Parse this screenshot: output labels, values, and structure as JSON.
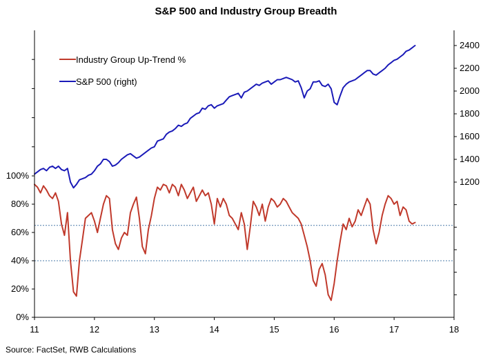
{
  "title": "S&P 500 and Industry Group Breadth",
  "source": "Source: FactSet, RWB Calculations",
  "colors": {
    "breadth": "#c0392b",
    "spx": "#1a1ab8",
    "reference": "#4a7aa8",
    "axis": "#000000"
  },
  "chart_data": {
    "type": "line",
    "title": "S&P 500 and Industry Group Breadth",
    "xlabel": "",
    "ylabel": "",
    "x_ticks": [
      "11",
      "12",
      "13",
      "14",
      "15",
      "16",
      "17",
      "18"
    ],
    "xlim": [
      2011,
      2018
    ],
    "y_left": {
      "ticks": [
        "0%",
        "20%",
        "40%",
        "60%",
        "80%",
        "100%"
      ],
      "ylim": [
        0,
        100
      ]
    },
    "y_right": {
      "ticks": [
        "1200",
        "1400",
        "1600",
        "1800",
        "2000",
        "2200",
        "2400"
      ],
      "ylim": [
        1200,
        2400
      ]
    },
    "reference_lines": [
      {
        "axis": "left",
        "value": 65,
        "style": "dotted"
      },
      {
        "axis": "left",
        "value": 40,
        "style": "dotted"
      }
    ],
    "legend_position": "top-left",
    "grid": false,
    "series": [
      {
        "name": "Industry Group Up-Trend %",
        "axis": "left",
        "color": "#c0392b",
        "x": [
          2011.0,
          2011.05,
          2011.1,
          2011.15,
          2011.2,
          2011.25,
          2011.3,
          2011.35,
          2011.4,
          2011.45,
          2011.5,
          2011.55,
          2011.6,
          2011.65,
          2011.7,
          2011.75,
          2011.8,
          2011.85,
          2011.9,
          2011.95,
          2012.0,
          2012.05,
          2012.1,
          2012.15,
          2012.2,
          2012.25,
          2012.3,
          2012.35,
          2012.4,
          2012.45,
          2012.5,
          2012.55,
          2012.6,
          2012.65,
          2012.7,
          2012.75,
          2012.8,
          2012.85,
          2012.9,
          2012.95,
          2013.0,
          2013.05,
          2013.1,
          2013.15,
          2013.2,
          2013.25,
          2013.3,
          2013.35,
          2013.4,
          2013.45,
          2013.5,
          2013.55,
          2013.6,
          2013.65,
          2013.7,
          2013.75,
          2013.8,
          2013.85,
          2013.9,
          2013.95,
          2014.0,
          2014.05,
          2014.1,
          2014.15,
          2014.2,
          2014.25,
          2014.3,
          2014.35,
          2014.4,
          2014.45,
          2014.5,
          2014.55,
          2014.6,
          2014.65,
          2014.7,
          2014.75,
          2014.8,
          2014.85,
          2014.9,
          2014.95,
          2015.0,
          2015.05,
          2015.1,
          2015.15,
          2015.2,
          2015.25,
          2015.3,
          2015.35,
          2015.4,
          2015.45,
          2015.5,
          2015.55,
          2015.6,
          2015.65,
          2015.7,
          2015.75,
          2015.8,
          2015.85,
          2015.9,
          2015.95,
          2016.0,
          2016.05,
          2016.1,
          2016.15,
          2016.2,
          2016.25,
          2016.3,
          2016.35,
          2016.4,
          2016.45,
          2016.5,
          2016.55,
          2016.6,
          2016.65,
          2016.7,
          2016.75,
          2016.8,
          2016.85,
          2016.9,
          2016.95,
          2017.0,
          2017.05,
          2017.1,
          2017.15,
          2017.2,
          2017.25,
          2017.3,
          2017.35
        ],
        "y": [
          94,
          92,
          88,
          93,
          90,
          86,
          84,
          88,
          82,
          66,
          58,
          74,
          40,
          18,
          15,
          40,
          55,
          70,
          72,
          74,
          68,
          60,
          70,
          80,
          86,
          84,
          62,
          52,
          48,
          56,
          60,
          58,
          74,
          80,
          85,
          70,
          50,
          45,
          62,
          72,
          84,
          92,
          90,
          94,
          93,
          88,
          94,
          92,
          86,
          94,
          90,
          84,
          88,
          92,
          82,
          86,
          90,
          86,
          88,
          80,
          66,
          84,
          78,
          84,
          80,
          72,
          70,
          66,
          62,
          74,
          66,
          48,
          64,
          82,
          78,
          72,
          80,
          68,
          78,
          84,
          82,
          78,
          80,
          84,
          82,
          78,
          74,
          72,
          70,
          66,
          58,
          50,
          40,
          26,
          22,
          34,
          38,
          30,
          16,
          12,
          24,
          40,
          54,
          66,
          62,
          70,
          64,
          68,
          76,
          72,
          78,
          84,
          80,
          62,
          52,
          60,
          72,
          80,
          86,
          84,
          80,
          82,
          72,
          78,
          76,
          68,
          66,
          67
        ]
      },
      {
        "name": "S&P 500 (right)",
        "axis": "right",
        "color": "#1a1ab8",
        "x": [
          2011.0,
          2011.05,
          2011.1,
          2011.15,
          2011.2,
          2011.25,
          2011.3,
          2011.35,
          2011.4,
          2011.45,
          2011.5,
          2011.55,
          2011.6,
          2011.65,
          2011.7,
          2011.75,
          2011.8,
          2011.85,
          2011.9,
          2011.95,
          2012.0,
          2012.05,
          2012.1,
          2012.15,
          2012.2,
          2012.25,
          2012.3,
          2012.35,
          2012.4,
          2012.45,
          2012.5,
          2012.55,
          2012.6,
          2012.65,
          2012.7,
          2012.75,
          2012.8,
          2012.85,
          2012.9,
          2012.95,
          2013.0,
          2013.05,
          2013.1,
          2013.15,
          2013.2,
          2013.25,
          2013.3,
          2013.35,
          2013.4,
          2013.45,
          2013.5,
          2013.55,
          2013.6,
          2013.65,
          2013.7,
          2013.75,
          2013.8,
          2013.85,
          2013.9,
          2013.95,
          2014.0,
          2014.05,
          2014.1,
          2014.15,
          2014.2,
          2014.25,
          2014.3,
          2014.35,
          2014.4,
          2014.45,
          2014.5,
          2014.55,
          2014.6,
          2014.65,
          2014.7,
          2014.75,
          2014.8,
          2014.85,
          2014.9,
          2014.95,
          2015.0,
          2015.05,
          2015.1,
          2015.15,
          2015.2,
          2015.25,
          2015.3,
          2015.35,
          2015.4,
          2015.45,
          2015.5,
          2015.55,
          2015.6,
          2015.65,
          2015.7,
          2015.75,
          2015.8,
          2015.85,
          2015.9,
          2015.95,
          2016.0,
          2016.05,
          2016.1,
          2016.15,
          2016.2,
          2016.25,
          2016.3,
          2016.35,
          2016.4,
          2016.45,
          2016.5,
          2016.55,
          2016.6,
          2016.65,
          2016.7,
          2016.75,
          2016.8,
          2016.85,
          2016.9,
          2016.95,
          2017.0,
          2017.05,
          2017.1,
          2017.15,
          2017.2,
          2017.25,
          2017.3,
          2017.35
        ],
        "y": [
          1270,
          1290,
          1310,
          1320,
          1300,
          1330,
          1340,
          1320,
          1340,
          1310,
          1300,
          1320,
          1200,
          1150,
          1180,
          1220,
          1230,
          1240,
          1260,
          1270,
          1300,
          1340,
          1360,
          1400,
          1400,
          1380,
          1340,
          1350,
          1370,
          1400,
          1420,
          1440,
          1450,
          1430,
          1410,
          1420,
          1440,
          1460,
          1480,
          1500,
          1510,
          1560,
          1570,
          1580,
          1620,
          1640,
          1650,
          1670,
          1700,
          1690,
          1710,
          1720,
          1760,
          1780,
          1800,
          1810,
          1850,
          1840,
          1870,
          1880,
          1850,
          1870,
          1880,
          1890,
          1920,
          1950,
          1960,
          1970,
          1980,
          1940,
          1990,
          2000,
          2020,
          2040,
          2060,
          2050,
          2070,
          2080,
          2090,
          2060,
          2080,
          2100,
          2100,
          2110,
          2120,
          2110,
          2100,
          2080,
          2090,
          2030,
          1940,
          2000,
          2020,
          2080,
          2080,
          2090,
          2050,
          2040,
          2060,
          2020,
          1900,
          1880,
          1960,
          2030,
          2060,
          2080,
          2090,
          2100,
          2120,
          2140,
          2160,
          2180,
          2180,
          2150,
          2140,
          2160,
          2180,
          2200,
          2230,
          2250,
          2270,
          2280,
          2300,
          2320,
          2350,
          2360,
          2380,
          2400
        ]
      }
    ]
  }
}
